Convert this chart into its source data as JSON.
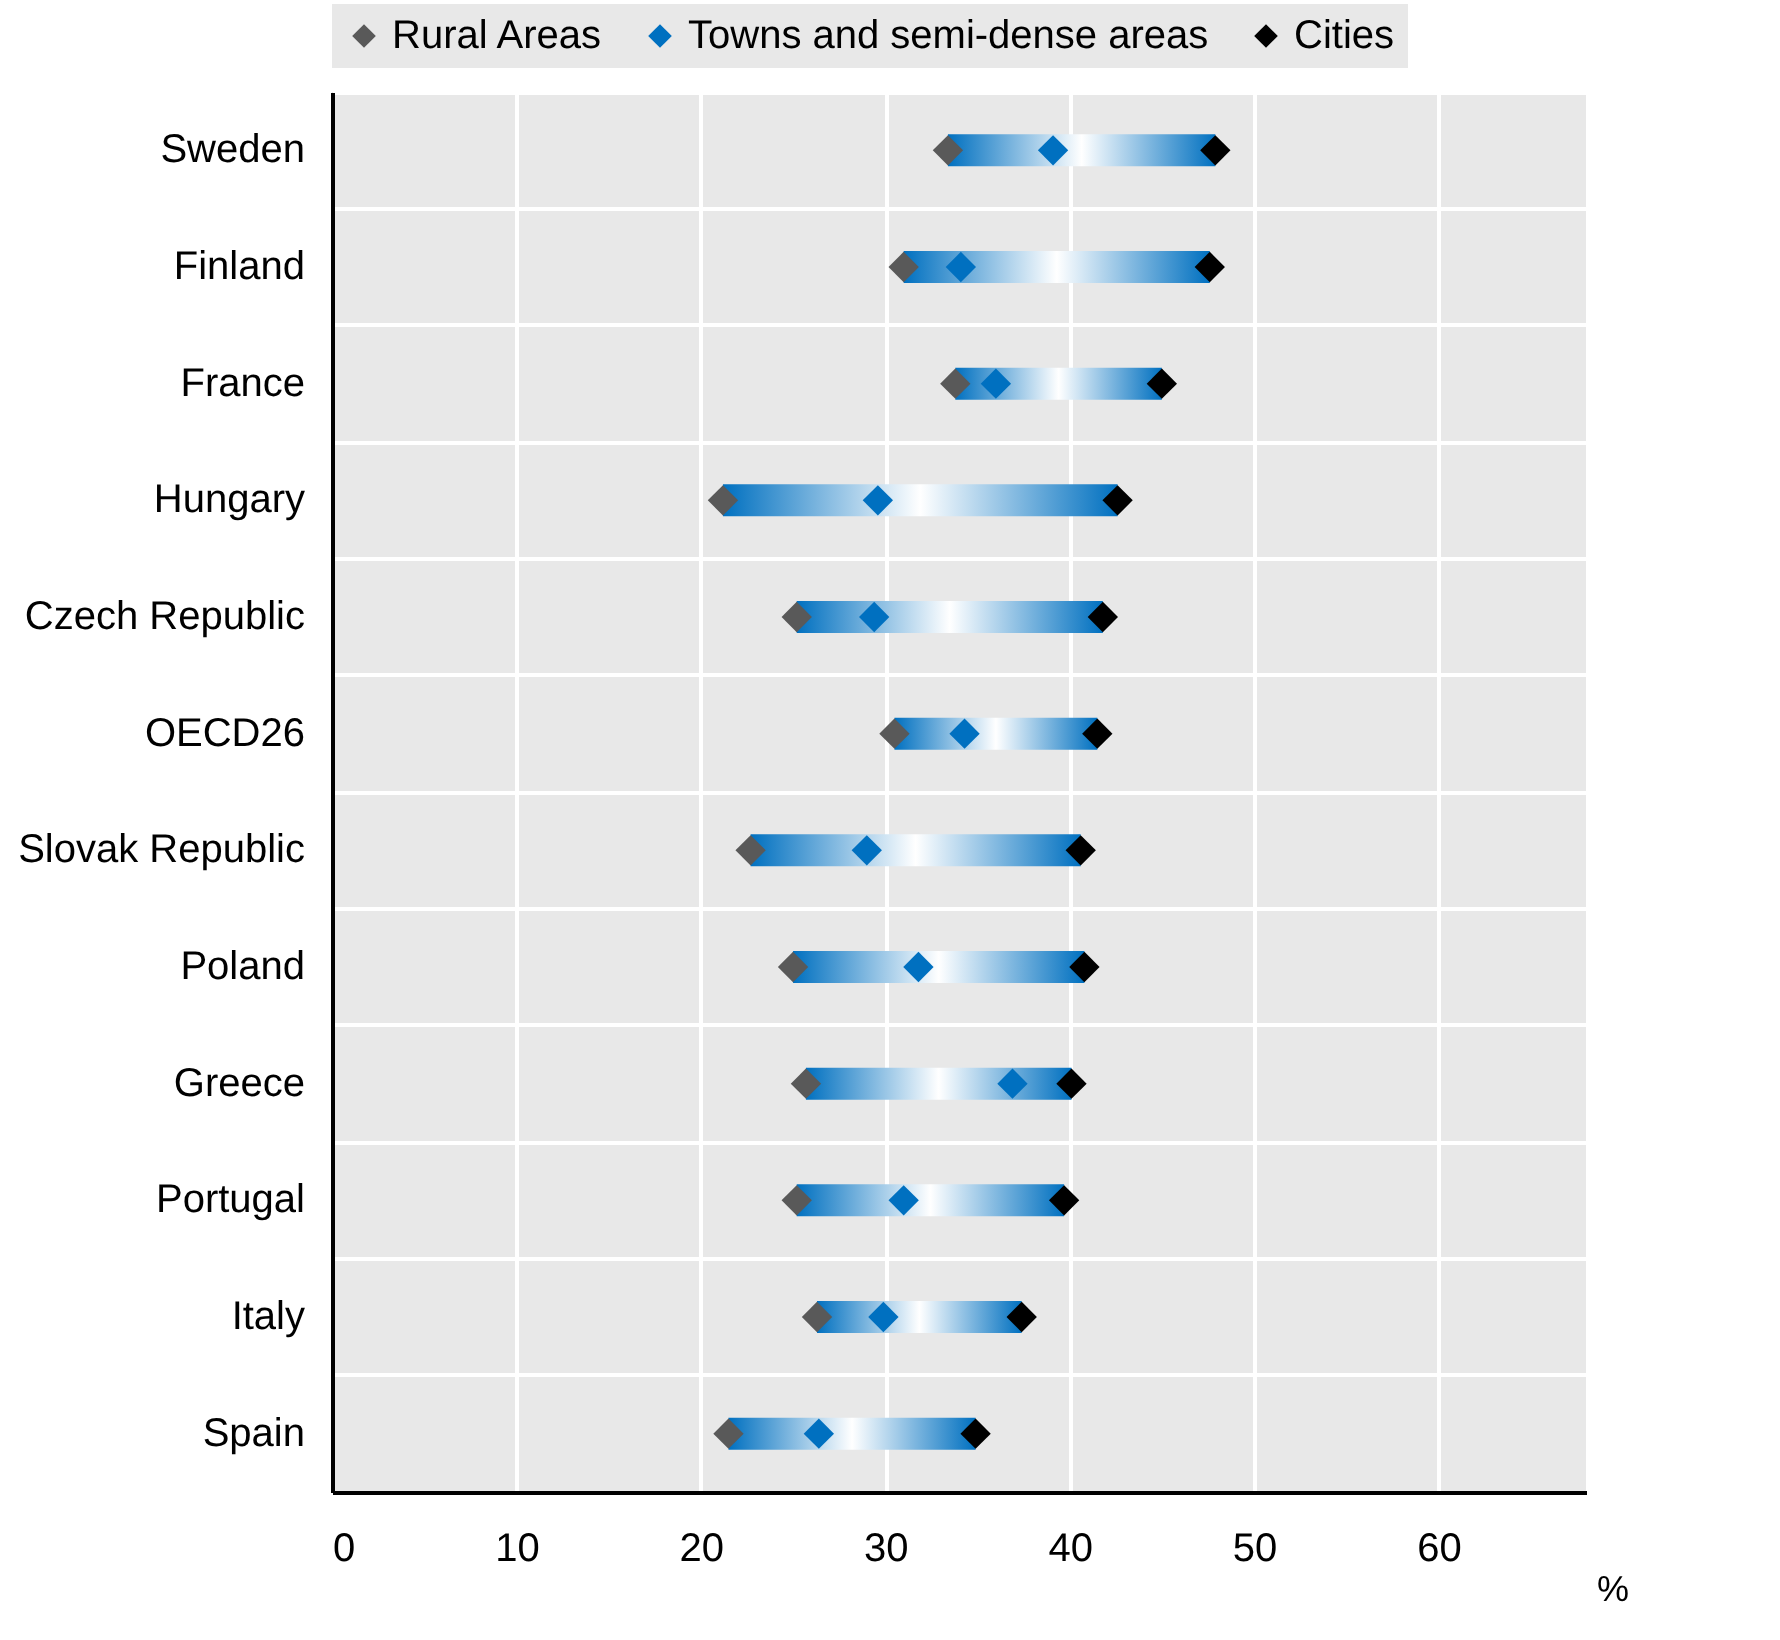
{
  "chart_data": {
    "type": "scatter",
    "orientation": "horizontal",
    "xlabel": "%",
    "categories": [
      "Sweden",
      "Finland",
      "France",
      "Hungary",
      "Czech Republic",
      "OECD26",
      "Slovak Republic",
      "Poland",
      "Greece",
      "Portugal",
      "Italy",
      "Spain"
    ],
    "series": [
      {
        "type": "bar",
        "color": "#0070c0",
        "base": [
          33.4,
          31.0,
          33.8,
          21.2,
          25.2,
          30.5,
          22.7,
          25.0,
          25.7,
          25.2,
          26.3,
          21.5
        ],
        "values": [
          14.5,
          16.6,
          11.2,
          21.4,
          16.6,
          11.0,
          17.9,
          15.8,
          14.4,
          14.5,
          11.1,
          13.4
        ]
      },
      {
        "name": "Rural Areas",
        "color": "#595959",
        "values": [
          33.4,
          31.0,
          33.8,
          21.2,
          25.2,
          30.5,
          22.7,
          25.0,
          25.7,
          25.2,
          26.3,
          21.5
        ]
      },
      {
        "name": "Towns and semi-dense areas",
        "color": "#0070c0",
        "values": [
          39.1,
          34.1,
          36.0,
          29.6,
          29.4,
          34.3,
          29.0,
          31.8,
          36.9,
          31.0,
          29.9,
          26.4
        ]
      },
      {
        "name": "Cities",
        "color": "#000000",
        "values": [
          47.9,
          47.6,
          45.0,
          42.6,
          41.8,
          41.5,
          40.6,
          40.8,
          40.1,
          39.7,
          37.4,
          34.9
        ]
      }
    ],
    "xlim": [
      0,
      68
    ],
    "xticks": [
      0,
      10,
      20,
      30,
      40,
      50,
      60
    ],
    "grid": true,
    "legend": "top",
    "marker": "diamond"
  }
}
